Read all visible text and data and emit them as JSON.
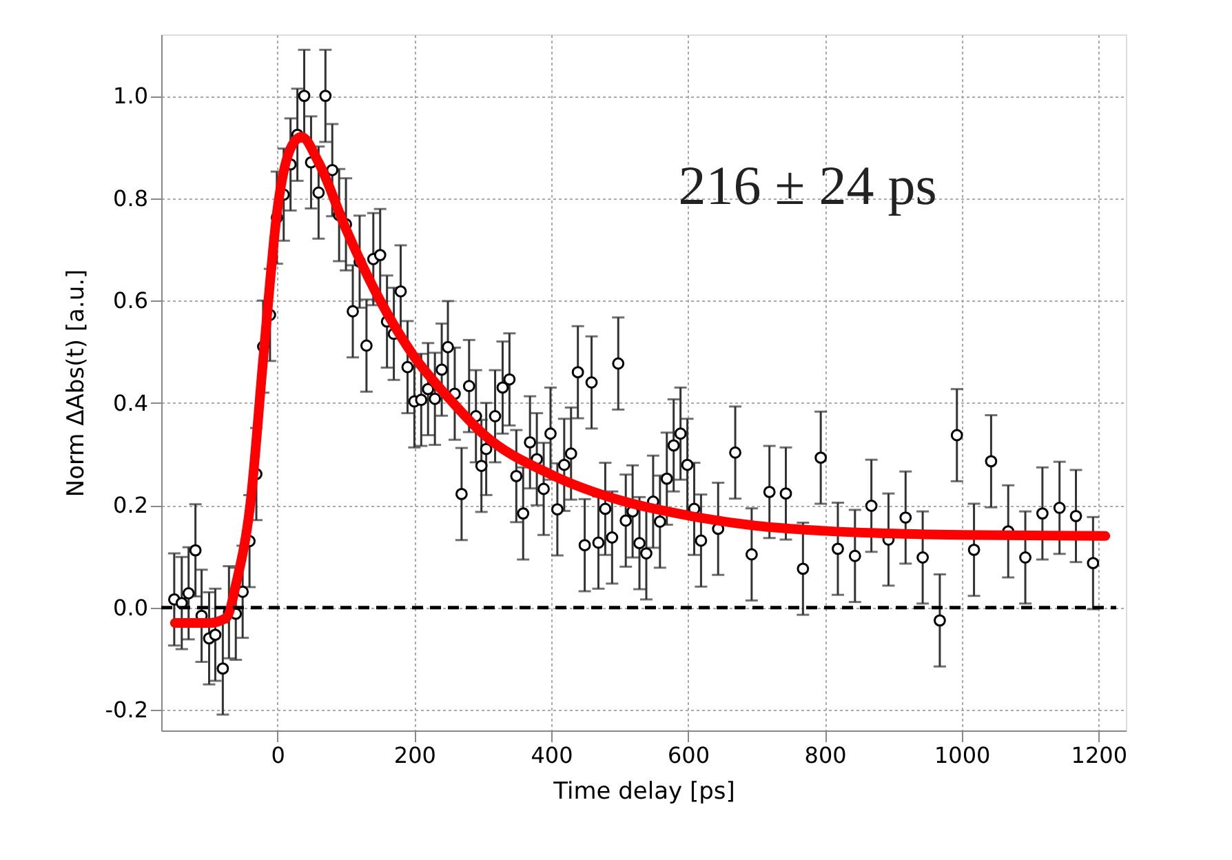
{
  "chart_data": {
    "type": "scatter",
    "xlabel": "Time delay [ps]",
    "ylabel": "Norm ΔAbs(t) [a.u.]",
    "xlim": [
      -170,
      1240
    ],
    "ylim": [
      -0.24,
      1.12
    ],
    "xticks": [
      0,
      200,
      400,
      600,
      800,
      1000,
      1200
    ],
    "yticks": [
      {
        "value": -0.2,
        "label": "-0.2"
      },
      {
        "value": 0,
        "label": "0.0"
      },
      {
        "value": 0.2,
        "label": "0.2"
      },
      {
        "value": 0.4,
        "label": "0.4"
      },
      {
        "value": 0.6,
        "label": "0.6"
      },
      {
        "value": 0.8,
        "label": "0.8"
      },
      {
        "value": 1,
        "label": "1.0"
      }
    ],
    "grid": true,
    "annotations": [
      "216 ± 24 ps"
    ],
    "ref_lines": [
      {
        "axis": "y",
        "value": 0,
        "color": "#000000",
        "line_style": "dashed"
      }
    ],
    "series": [
      {
        "type": "scatter",
        "color": "#000000",
        "marker": "circle",
        "x": [
          -151,
          -140,
          -130,
          -120,
          -111,
          -100,
          -91,
          -80,
          -71,
          -61,
          -51,
          -41,
          -31,
          -21,
          -11,
          -1,
          9,
          19,
          29,
          39,
          49,
          60,
          70,
          80,
          90,
          100,
          110,
          120,
          130,
          140,
          150,
          160,
          170,
          180,
          190,
          200,
          210,
          220,
          230,
          240,
          249,
          259,
          269,
          280,
          290,
          298,
          305,
          318,
          329,
          339,
          349,
          359,
          369,
          379,
          389,
          399,
          409,
          419,
          429,
          439,
          449,
          459,
          469,
          479,
          489,
          498,
          509,
          519,
          529,
          539,
          549,
          559,
          569,
          579,
          589,
          599,
          609,
          619,
          644,
          669,
          693,
          719,
          743,
          768,
          794,
          819,
          844,
          868,
          893,
          918,
          943,
          968,
          993,
          1018,
          1043,
          1068,
          1093,
          1118,
          1143,
          1167,
          1192
        ],
        "values": [
          0.016,
          0.009,
          0.028,
          0.112,
          -0.016,
          -0.06,
          -0.053,
          -0.119,
          -0.009,
          -0.012,
          0.031,
          0.13,
          0.261,
          0.51,
          0.572,
          0.762,
          0.807,
          0.866,
          0.924,
          1.0,
          0.87,
          0.811,
          1.0,
          0.855,
          0.767,
          0.749,
          0.579,
          0.676,
          0.512,
          0.681,
          0.689,
          0.559,
          0.535,
          0.618,
          0.47,
          0.403,
          0.406,
          0.427,
          0.408,
          0.465,
          0.509,
          0.418,
          0.222,
          0.433,
          0.374,
          0.277,
          0.31,
          0.374,
          0.43,
          0.446,
          0.257,
          0.184,
          0.323,
          0.29,
          0.232,
          0.34,
          0.192,
          0.279,
          0.301,
          0.46,
          0.122,
          0.44,
          0.127,
          0.193,
          0.137,
          0.477,
          0.17,
          0.188,
          0.126,
          0.106,
          0.207,
          0.168,
          0.252,
          0.317,
          0.34,
          0.279,
          0.193,
          0.131,
          0.154,
          0.303,
          0.104,
          0.226,
          0.223,
          0.076,
          0.293,
          0.115,
          0.101,
          0.199,
          0.133,
          0.176,
          0.098,
          -0.025,
          0.337,
          0.113,
          0.286,
          0.149,
          0.098,
          0.184,
          0.195,
          0.179,
          0.087
        ],
        "errors": [
          0.09,
          0.09,
          0.09,
          0.09,
          0.09,
          0.09,
          0.09,
          0.09,
          0.09,
          0.09,
          0.09,
          0.09,
          0.09,
          0.09,
          0.09,
          0.09,
          0.09,
          0.09,
          0.09,
          0.09,
          0.09,
          0.09,
          0.09,
          0.09,
          0.09,
          0.09,
          0.09,
          0.09,
          0.09,
          0.09,
          0.09,
          0.09,
          0.09,
          0.09,
          0.09,
          0.09,
          0.09,
          0.09,
          0.09,
          0.09,
          0.09,
          0.09,
          0.09,
          0.09,
          0.09,
          0.09,
          0.09,
          0.09,
          0.09,
          0.09,
          0.09,
          0.09,
          0.09,
          0.09,
          0.09,
          0.09,
          0.09,
          0.09,
          0.09,
          0.09,
          0.09,
          0.09,
          0.09,
          0.09,
          0.09,
          0.09,
          0.09,
          0.09,
          0.09,
          0.09,
          0.09,
          0.09,
          0.09,
          0.09,
          0.09,
          0.09,
          0.09,
          0.09,
          0.09,
          0.09,
          0.09,
          0.09,
          0.09,
          0.09,
          0.09,
          0.09,
          0.09,
          0.09,
          0.09,
          0.09,
          0.09,
          0.09,
          0.09,
          0.09,
          0.09,
          0.09,
          0.09,
          0.09,
          0.09,
          0.09,
          0.09
        ]
      },
      {
        "type": "line",
        "color": "#ff0000",
        "line_style": "solid",
        "x": [
          -150,
          -100,
          -75,
          -60,
          -40,
          -20,
          0,
          20,
          35,
          60,
          100,
          150,
          200,
          250,
          300,
          400,
          500,
          600,
          700,
          800,
          1000,
          1210
        ],
        "values": [
          -0.03,
          -0.03,
          -0.02,
          0.05,
          0.2,
          0.5,
          0.78,
          0.9,
          0.92,
          0.87,
          0.74,
          0.6,
          0.49,
          0.41,
          0.34,
          0.26,
          0.21,
          0.18,
          0.16,
          0.15,
          0.142,
          0.14
        ]
      }
    ]
  }
}
